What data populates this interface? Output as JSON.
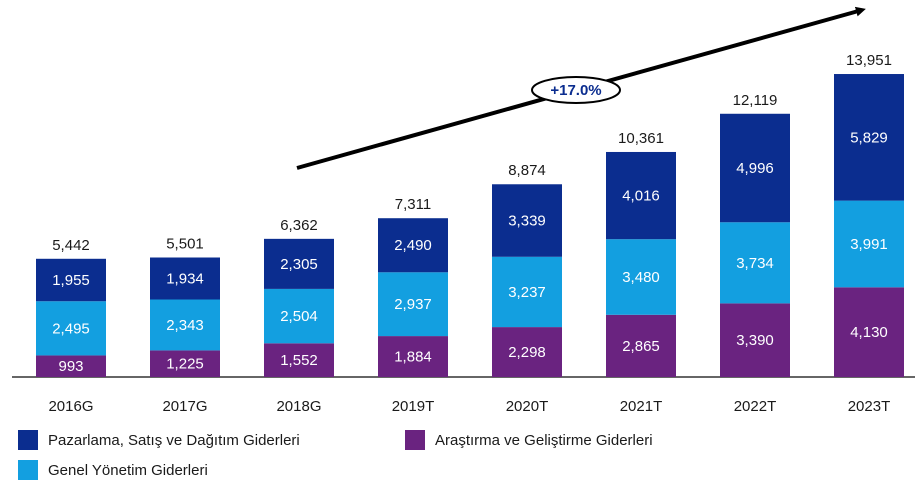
{
  "chart_data": {
    "type": "stacked_bar",
    "annotation": "+17.0%",
    "categories": [
      "2016G",
      "2017G",
      "2018G",
      "2019T",
      "2020T",
      "2021T",
      "2022T",
      "2023T"
    ],
    "series": [
      {
        "name": "Araştırma ve Geliştirme Giderleri",
        "color": "#6a2380",
        "values": [
          993,
          1225,
          1552,
          1884,
          2298,
          2865,
          3390,
          4130
        ],
        "value_labels": [
          "993",
          "1,225",
          "1,552",
          "1,884",
          "2,298",
          "2,865",
          "3,390",
          "4,130"
        ]
      },
      {
        "name": "Genel Yönetim Giderleri",
        "color": "#139fe0",
        "values": [
          2495,
          2343,
          2504,
          2937,
          3237,
          3480,
          3734,
          3991
        ],
        "value_labels": [
          "2,495",
          "2,343",
          "2,504",
          "2,937",
          "3,237",
          "3,480",
          "3,734",
          "3,991"
        ]
      },
      {
        "name": "Pazarlama, Satış ve Dağıtım Giderleri",
        "color": "#0b2d8f",
        "values": [
          1955,
          1934,
          2305,
          2490,
          3339,
          4016,
          4996,
          5829
        ],
        "value_labels": [
          "1,955",
          "1,934",
          "2,305",
          "2,490",
          "3,339",
          "4,016",
          "4,996",
          "5,829"
        ]
      }
    ],
    "totals": [
      5442,
      5501,
      6362,
      7311,
      8874,
      10361,
      12119,
      13951
    ],
    "totals_labels": [
      "5,442",
      "5,501",
      "6,362",
      "7,311",
      "8,874",
      "10,361",
      "12,119",
      "13,951"
    ]
  }
}
